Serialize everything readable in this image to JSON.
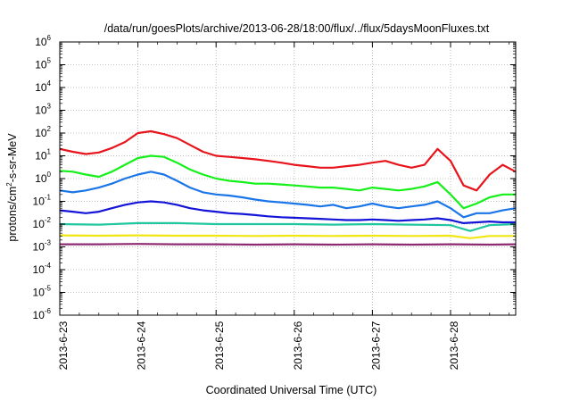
{
  "chart_data": {
    "type": "line",
    "title": "/data/run/goesPlots/archive/2013-06-28/18:00/flux/../flux/5daysMoonFluxes.txt",
    "xlabel": "Coordinated Universal Time (UTC)",
    "ylabel": {
      "base": "protons/cm",
      "sup": "2",
      "rest": "-s-sr-MeV"
    },
    "y_scale": "log",
    "ylim": [
      1e-06,
      1000000.0
    ],
    "y_ticks": [
      {
        "value": 1e-06,
        "base": "10",
        "exp": "-6"
      },
      {
        "value": 1e-05,
        "base": "10",
        "exp": "-5"
      },
      {
        "value": 0.0001,
        "base": "10",
        "exp": "-4"
      },
      {
        "value": 0.001,
        "base": "10",
        "exp": "-3"
      },
      {
        "value": 0.01,
        "base": "10",
        "exp": "-2"
      },
      {
        "value": 0.1,
        "base": "10",
        "exp": "-1"
      },
      {
        "value": 1,
        "base": "10",
        "exp": "0"
      },
      {
        "value": 10,
        "base": "10",
        "exp": "1"
      },
      {
        "value": 100,
        "base": "10",
        "exp": "2"
      },
      {
        "value": 1000,
        "base": "10",
        "exp": "3"
      },
      {
        "value": 10000,
        "base": "10",
        "exp": "4"
      },
      {
        "value": 100000,
        "base": "10",
        "exp": "5"
      },
      {
        "value": 1000000,
        "base": "10",
        "exp": "6"
      }
    ],
    "x_ticks": [
      "2013-6-23",
      "2013-6-24",
      "2013-6-25",
      "2013-6-26",
      "2013-6-27",
      "2013-6-28"
    ],
    "x_range": [
      "2013-6-23 00:00",
      "2013-6-28 20:00"
    ],
    "grid": true,
    "legend": "none",
    "series": [
      {
        "color": "#e8141b",
        "points": [
          [
            "2013-6-23 00:00",
            20
          ],
          [
            "2013-6-23 04:00",
            15
          ],
          [
            "2013-6-23 08:00",
            12
          ],
          [
            "2013-6-23 12:00",
            14
          ],
          [
            "2013-6-23 16:00",
            22
          ],
          [
            "2013-6-23 20:00",
            40
          ],
          [
            "2013-6-24 00:00",
            100
          ],
          [
            "2013-6-24 04:00",
            120
          ],
          [
            "2013-6-24 08:00",
            90
          ],
          [
            "2013-6-24 12:00",
            60
          ],
          [
            "2013-6-24 16:00",
            30
          ],
          [
            "2013-6-24 20:00",
            15
          ],
          [
            "2013-6-25 00:00",
            10
          ],
          [
            "2013-6-25 04:00",
            9
          ],
          [
            "2013-6-25 08:00",
            8
          ],
          [
            "2013-6-25 12:00",
            7
          ],
          [
            "2013-6-25 16:00",
            6
          ],
          [
            "2013-6-25 20:00",
            5
          ],
          [
            "2013-6-26 00:00",
            4
          ],
          [
            "2013-6-26 04:00",
            3.5
          ],
          [
            "2013-6-26 08:00",
            3
          ],
          [
            "2013-6-26 12:00",
            3
          ],
          [
            "2013-6-26 16:00",
            3.5
          ],
          [
            "2013-6-26 20:00",
            4
          ],
          [
            "2013-6-27 00:00",
            5
          ],
          [
            "2013-6-27 04:00",
            6
          ],
          [
            "2013-6-27 08:00",
            4
          ],
          [
            "2013-6-27 12:00",
            3
          ],
          [
            "2013-6-27 16:00",
            4
          ],
          [
            "2013-6-27 20:00",
            20
          ],
          [
            "2013-6-28 00:00",
            6
          ],
          [
            "2013-6-28 04:00",
            0.5
          ],
          [
            "2013-6-28 08:00",
            0.3
          ],
          [
            "2013-6-28 12:00",
            1.5
          ],
          [
            "2013-6-28 16:00",
            4
          ],
          [
            "2013-6-28 20:00",
            2
          ]
        ]
      },
      {
        "color": "#16f01a",
        "points": [
          [
            "2013-6-23 00:00",
            2.2
          ],
          [
            "2013-6-23 04:00",
            2
          ],
          [
            "2013-6-23 08:00",
            1.5
          ],
          [
            "2013-6-23 12:00",
            1.2
          ],
          [
            "2013-6-23 16:00",
            2
          ],
          [
            "2013-6-23 20:00",
            4
          ],
          [
            "2013-6-24 00:00",
            8
          ],
          [
            "2013-6-24 04:00",
            10
          ],
          [
            "2013-6-24 08:00",
            9
          ],
          [
            "2013-6-24 12:00",
            5
          ],
          [
            "2013-6-24 16:00",
            2.5
          ],
          [
            "2013-6-24 20:00",
            1.5
          ],
          [
            "2013-6-25 00:00",
            1
          ],
          [
            "2013-6-25 04:00",
            0.8
          ],
          [
            "2013-6-25 08:00",
            0.7
          ],
          [
            "2013-6-25 12:00",
            0.6
          ],
          [
            "2013-6-25 16:00",
            0.6
          ],
          [
            "2013-6-25 20:00",
            0.55
          ],
          [
            "2013-6-26 00:00",
            0.5
          ],
          [
            "2013-6-26 04:00",
            0.45
          ],
          [
            "2013-6-26 08:00",
            0.4
          ],
          [
            "2013-6-26 12:00",
            0.4
          ],
          [
            "2013-6-26 16:00",
            0.35
          ],
          [
            "2013-6-26 20:00",
            0.3
          ],
          [
            "2013-6-27 00:00",
            0.4
          ],
          [
            "2013-6-27 04:00",
            0.35
          ],
          [
            "2013-6-27 08:00",
            0.3
          ],
          [
            "2013-6-27 12:00",
            0.35
          ],
          [
            "2013-6-27 16:00",
            0.45
          ],
          [
            "2013-6-27 20:00",
            0.7
          ],
          [
            "2013-6-28 00:00",
            0.2
          ],
          [
            "2013-6-28 04:00",
            0.05
          ],
          [
            "2013-6-28 08:00",
            0.08
          ],
          [
            "2013-6-28 12:00",
            0.15
          ],
          [
            "2013-6-28 16:00",
            0.2
          ],
          [
            "2013-6-28 20:00",
            0.2
          ]
        ]
      },
      {
        "color": "#1a75e8",
        "points": [
          [
            "2013-6-23 00:00",
            0.3
          ],
          [
            "2013-6-23 04:00",
            0.25
          ],
          [
            "2013-6-23 08:00",
            0.3
          ],
          [
            "2013-6-23 12:00",
            0.4
          ],
          [
            "2013-6-23 16:00",
            0.6
          ],
          [
            "2013-6-23 20:00",
            1
          ],
          [
            "2013-6-24 00:00",
            1.5
          ],
          [
            "2013-6-24 04:00",
            2
          ],
          [
            "2013-6-24 08:00",
            1.5
          ],
          [
            "2013-6-24 12:00",
            0.8
          ],
          [
            "2013-6-24 16:00",
            0.4
          ],
          [
            "2013-6-24 20:00",
            0.25
          ],
          [
            "2013-6-25 00:00",
            0.2
          ],
          [
            "2013-6-25 04:00",
            0.18
          ],
          [
            "2013-6-25 08:00",
            0.15
          ],
          [
            "2013-6-25 12:00",
            0.12
          ],
          [
            "2013-6-25 16:00",
            0.1
          ],
          [
            "2013-6-25 20:00",
            0.09
          ],
          [
            "2013-6-26 00:00",
            0.08
          ],
          [
            "2013-6-26 04:00",
            0.07
          ],
          [
            "2013-6-26 08:00",
            0.06
          ],
          [
            "2013-6-26 12:00",
            0.07
          ],
          [
            "2013-6-26 16:00",
            0.05
          ],
          [
            "2013-6-26 20:00",
            0.06
          ],
          [
            "2013-6-27 00:00",
            0.08
          ],
          [
            "2013-6-27 04:00",
            0.06
          ],
          [
            "2013-6-27 08:00",
            0.05
          ],
          [
            "2013-6-27 12:00",
            0.06
          ],
          [
            "2013-6-27 16:00",
            0.07
          ],
          [
            "2013-6-27 20:00",
            0.1
          ],
          [
            "2013-6-28 00:00",
            0.05
          ],
          [
            "2013-6-28 04:00",
            0.02
          ],
          [
            "2013-6-28 08:00",
            0.03
          ],
          [
            "2013-6-28 12:00",
            0.03
          ],
          [
            "2013-6-28 16:00",
            0.04
          ],
          [
            "2013-6-28 20:00",
            0.05
          ]
        ]
      },
      {
        "color": "#1414d8",
        "points": [
          [
            "2013-6-23 00:00",
            0.04
          ],
          [
            "2013-6-23 04:00",
            0.035
          ],
          [
            "2013-6-23 08:00",
            0.03
          ],
          [
            "2013-6-23 12:00",
            0.035
          ],
          [
            "2013-6-23 16:00",
            0.05
          ],
          [
            "2013-6-23 20:00",
            0.07
          ],
          [
            "2013-6-24 00:00",
            0.09
          ],
          [
            "2013-6-24 04:00",
            0.1
          ],
          [
            "2013-6-24 08:00",
            0.09
          ],
          [
            "2013-6-24 12:00",
            0.07
          ],
          [
            "2013-6-24 16:00",
            0.05
          ],
          [
            "2013-6-24 20:00",
            0.04
          ],
          [
            "2013-6-25 00:00",
            0.035
          ],
          [
            "2013-6-25 04:00",
            0.03
          ],
          [
            "2013-6-25 08:00",
            0.028
          ],
          [
            "2013-6-25 12:00",
            0.025
          ],
          [
            "2013-6-25 16:00",
            0.022
          ],
          [
            "2013-6-25 20:00",
            0.02
          ],
          [
            "2013-6-26 00:00",
            0.019
          ],
          [
            "2013-6-26 04:00",
            0.018
          ],
          [
            "2013-6-26 08:00",
            0.017
          ],
          [
            "2013-6-26 12:00",
            0.016
          ],
          [
            "2013-6-26 16:00",
            0.015
          ],
          [
            "2013-6-26 20:00",
            0.015
          ],
          [
            "2013-6-27 00:00",
            0.016
          ],
          [
            "2013-6-27 04:00",
            0.015
          ],
          [
            "2013-6-27 08:00",
            0.014
          ],
          [
            "2013-6-27 12:00",
            0.015
          ],
          [
            "2013-6-27 16:00",
            0.016
          ],
          [
            "2013-6-27 20:00",
            0.018
          ],
          [
            "2013-6-28 00:00",
            0.015
          ],
          [
            "2013-6-28 04:00",
            0.011
          ],
          [
            "2013-6-28 08:00",
            0.012
          ],
          [
            "2013-6-28 12:00",
            0.013
          ],
          [
            "2013-6-28 16:00",
            0.012
          ],
          [
            "2013-6-28 20:00",
            0.012
          ]
        ]
      },
      {
        "color": "#20c6a0",
        "points": [
          [
            "2013-6-23 00:00",
            0.01
          ],
          [
            "2013-6-23 12:00",
            0.0095
          ],
          [
            "2013-6-24 00:00",
            0.011
          ],
          [
            "2013-6-24 12:00",
            0.011
          ],
          [
            "2013-6-25 00:00",
            0.01
          ],
          [
            "2013-6-25 12:00",
            0.01
          ],
          [
            "2013-6-26 00:00",
            0.01
          ],
          [
            "2013-6-26 12:00",
            0.0095
          ],
          [
            "2013-6-27 00:00",
            0.01
          ],
          [
            "2013-6-27 12:00",
            0.0095
          ],
          [
            "2013-6-28 00:00",
            0.009
          ],
          [
            "2013-6-28 06:00",
            0.005
          ],
          [
            "2013-6-28 12:00",
            0.009
          ],
          [
            "2013-6-28 20:00",
            0.01
          ]
        ]
      },
      {
        "color": "#f2e612",
        "points": [
          [
            "2013-6-23 00:00",
            0.0032
          ],
          [
            "2013-6-23 12:00",
            0.0031
          ],
          [
            "2013-6-24 00:00",
            0.0032
          ],
          [
            "2013-6-24 12:00",
            0.0031
          ],
          [
            "2013-6-25 00:00",
            0.0031
          ],
          [
            "2013-6-25 12:00",
            0.003
          ],
          [
            "2013-6-26 00:00",
            0.0031
          ],
          [
            "2013-6-26 12:00",
            0.003
          ],
          [
            "2013-6-27 00:00",
            0.0031
          ],
          [
            "2013-6-27 12:00",
            0.003
          ],
          [
            "2013-6-28 00:00",
            0.0031
          ],
          [
            "2013-6-28 06:00",
            0.0024
          ],
          [
            "2013-6-28 12:00",
            0.003
          ],
          [
            "2013-6-28 20:00",
            0.003
          ]
        ]
      },
      {
        "color": "#8e2a70",
        "points": [
          [
            "2013-6-23 00:00",
            0.0013
          ],
          [
            "2013-6-23 12:00",
            0.0013
          ],
          [
            "2013-6-24 00:00",
            0.00135
          ],
          [
            "2013-6-24 12:00",
            0.0013
          ],
          [
            "2013-6-25 00:00",
            0.0013
          ],
          [
            "2013-6-25 12:00",
            0.00125
          ],
          [
            "2013-6-26 00:00",
            0.0013
          ],
          [
            "2013-6-26 12:00",
            0.00125
          ],
          [
            "2013-6-27 00:00",
            0.0013
          ],
          [
            "2013-6-27 12:00",
            0.00125
          ],
          [
            "2013-6-28 00:00",
            0.0013
          ],
          [
            "2013-6-28 12:00",
            0.00125
          ],
          [
            "2013-6-28 20:00",
            0.0013
          ]
        ]
      }
    ]
  }
}
